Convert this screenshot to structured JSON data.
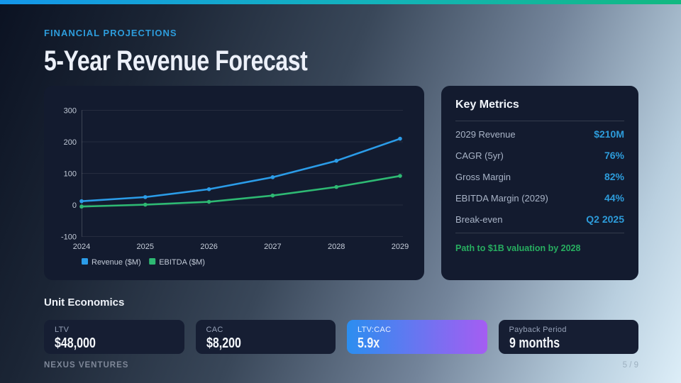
{
  "slide": {
    "eyebrow": "FINANCIAL PROJECTIONS",
    "title": "5-Year Revenue Forecast",
    "footer_brand": "NEXUS VENTURES",
    "page_indicator": "5 / 9"
  },
  "colors": {
    "accent_blue": "#2d9cdb",
    "note_green": "#27ae60",
    "topbar_gradient_start": "#1496ea",
    "topbar_gradient_end": "#12b981",
    "highlight_gradient_start": "#2b8ef0",
    "highlight_gradient_end": "#a55df2",
    "panel_background": "#131b2f"
  },
  "chart_data": {
    "type": "line",
    "title": "",
    "xlabel": "",
    "ylabel": "",
    "x": [
      "2024",
      "2025",
      "2026",
      "2027",
      "2028",
      "2029"
    ],
    "series": [
      {
        "name": "Revenue ($M)",
        "color": "#2b9ce8",
        "values": [
          12,
          25,
          50,
          88,
          140,
          210
        ]
      },
      {
        "name": "EBITDA ($M)",
        "color": "#2eb973",
        "values": [
          -5,
          1,
          10,
          30,
          57,
          92
        ]
      }
    ],
    "ylim": [
      -100,
      300
    ],
    "yticks": [
      -100,
      0,
      100,
      200,
      300
    ],
    "grid": true,
    "legend_position": "bottom-left"
  },
  "key_metrics": {
    "title": "Key Metrics",
    "rows": [
      {
        "label": "2029 Revenue",
        "value": "$210M"
      },
      {
        "label": "CAGR (5yr)",
        "value": "76%"
      },
      {
        "label": "Gross Margin",
        "value": "82%"
      },
      {
        "label": "EBITDA Margin (2029)",
        "value": "44%"
      },
      {
        "label": "Break-even",
        "value": "Q2 2025"
      }
    ],
    "note": "Path to $1B valuation by 2028"
  },
  "unit_economics": {
    "title": "Unit Economics",
    "cards": [
      {
        "label": "LTV",
        "value": "$48,000",
        "highlight": false
      },
      {
        "label": "CAC",
        "value": "$8,200",
        "highlight": false
      },
      {
        "label": "LTV:CAC",
        "value": "5.9x",
        "highlight": true
      },
      {
        "label": "Payback Period",
        "value": "9 months",
        "highlight": false
      }
    ]
  }
}
